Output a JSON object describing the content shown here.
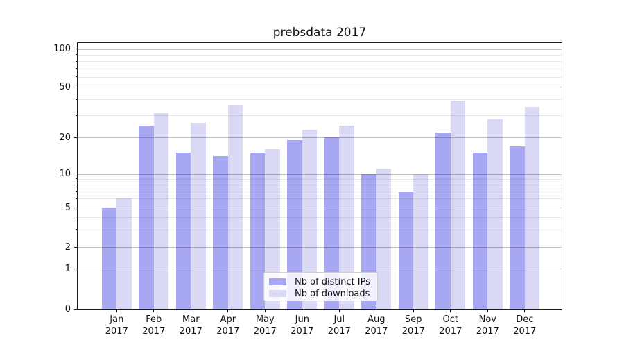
{
  "chart_data": {
    "type": "bar",
    "title": "prebsdata 2017",
    "categories": [
      "Jan",
      "Feb",
      "Mar",
      "Apr",
      "May",
      "Jun",
      "Jul",
      "Aug",
      "Sep",
      "Oct",
      "Nov",
      "Dec"
    ],
    "category_year": "2017",
    "series": [
      {
        "name": "Nb of distinct IPs",
        "color": "#a8a8f2",
        "values": [
          5,
          25,
          15,
          14,
          15,
          19,
          20,
          10,
          7,
          22,
          15,
          17
        ]
      },
      {
        "name": "Nb of downloads",
        "color": "#d9d9f6",
        "values": [
          6,
          31,
          26,
          36,
          16,
          23,
          25,
          11,
          10,
          39,
          28,
          35
        ]
      }
    ],
    "yaxis": {
      "scale": "quasi-log (symlog, linear below 1)",
      "ticks": [
        0,
        1,
        2,
        5,
        10,
        20,
        50,
        100
      ],
      "tick_labels": [
        "0",
        "1",
        "2",
        "5",
        "10",
        "20",
        "50",
        "100"
      ],
      "minor_ticks": [
        3,
        4,
        6,
        7,
        8,
        9,
        30,
        40,
        60,
        70,
        80,
        90
      ],
      "range": [
        0,
        100
      ]
    },
    "xlabel": "",
    "ylabel": "",
    "grid": "horizontal major and minor gridlines, drawn over bars",
    "legend_position": "inside lower center"
  }
}
